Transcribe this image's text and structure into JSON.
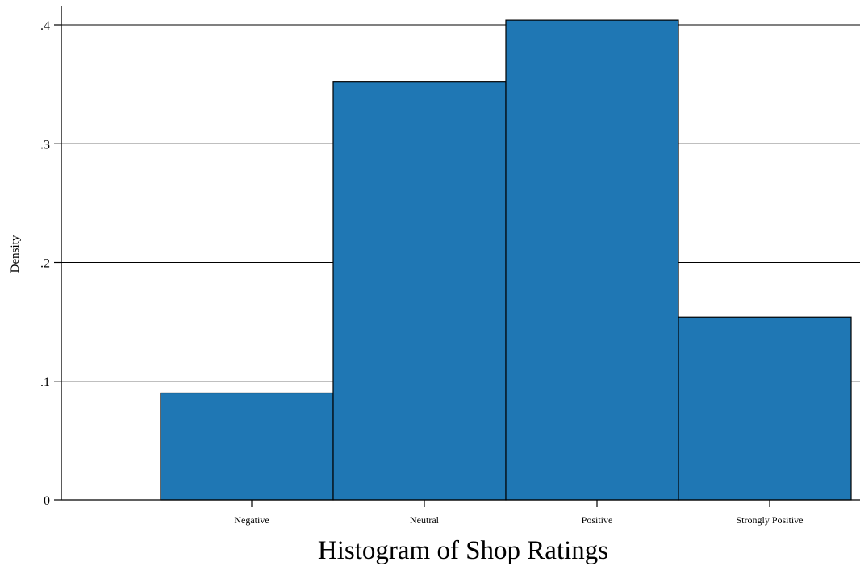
{
  "chart_data": {
    "type": "bar",
    "title": "",
    "xlabel": "Histogram of Shop Ratings",
    "ylabel": "Density",
    "categories": [
      "Negative",
      "Neutral",
      "Positive",
      "Strongly Positive"
    ],
    "values": [
      0.09,
      0.352,
      0.404,
      0.154
    ],
    "ylim": [
      0,
      0.4
    ],
    "yticks": [
      0,
      0.1,
      0.2,
      0.3,
      0.4
    ],
    "ytick_labels": [
      "0",
      ".1",
      ".2",
      ".3",
      ".4"
    ],
    "grid": true,
    "legend": "none",
    "bar_color": "#1f77b4"
  }
}
